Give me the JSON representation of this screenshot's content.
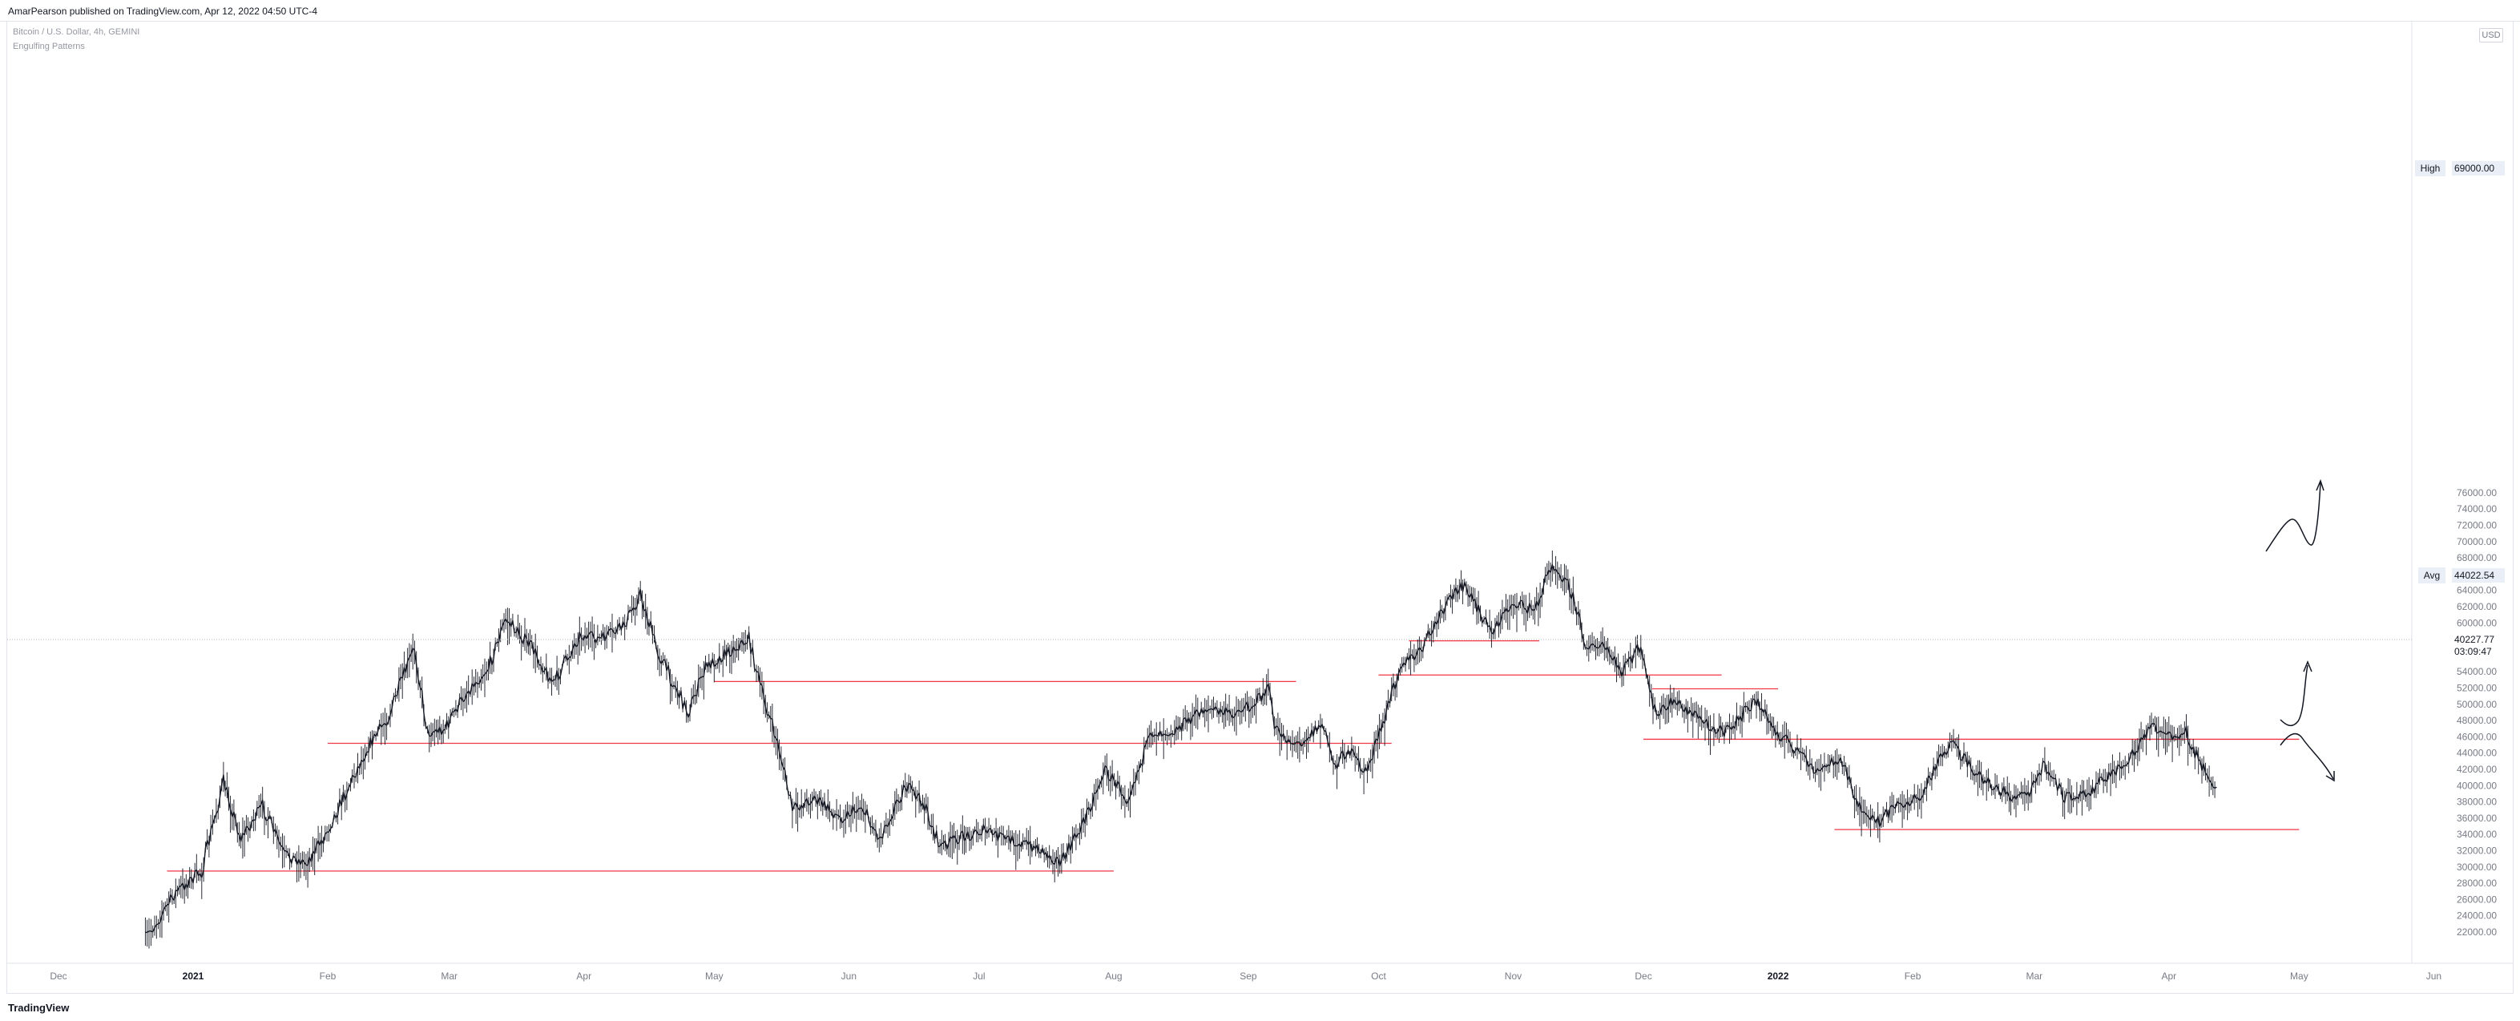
{
  "header": {
    "published_line": "AmarPearson published on TradingView.com, Apr 12, 2022 04:50 UTC-4"
  },
  "legend": {
    "symbol_line": "Bitcoin / U.S. Dollar, 4h, GEMINI",
    "indicator_line": "Engulfing Patterns"
  },
  "footer": {
    "brand": "TradingView"
  },
  "price_axis": {
    "unit": "USD",
    "high_label": "High",
    "high_value": "69000.00",
    "avg_label": "Avg",
    "avg_value": "44022.54",
    "last_value": "40227.77",
    "countdown": "03:09:47"
  },
  "colors": {
    "candles": "#131722",
    "levels": "#f23645",
    "drawings": "#131722",
    "axis_text": "#787b86",
    "grid_tag": "#e9eef7"
  },
  "chart_data": {
    "type": "line",
    "title": "",
    "xlabel": "",
    "ylabel": "",
    "ylim": [
      20000,
      77000
    ],
    "grid": false,
    "x_ticks": [
      "Dec",
      "2021",
      "Feb",
      "Mar",
      "Apr",
      "May",
      "Jun",
      "Jul",
      "Aug",
      "Sep",
      "Oct",
      "Nov",
      "Dec",
      "2022",
      "Feb",
      "Mar",
      "Apr",
      "May",
      "Jun"
    ],
    "y_ticks": [
      22000,
      24000,
      26000,
      28000,
      30000,
      32000,
      34000,
      36000,
      38000,
      40000,
      42000,
      44000,
      46000,
      48000,
      50000,
      52000,
      54000,
      56000,
      58000,
      60000,
      62000,
      64000,
      66000,
      68000,
      70000,
      72000,
      74000,
      76000
    ],
    "series": [
      {
        "x": [
          "2020-12-21",
          "2020-12-24",
          "2020-12-28",
          "2021-01-03",
          "2021-01-08",
          "2021-01-12",
          "2021-01-17",
          "2021-01-22",
          "2021-01-27",
          "2021-01-31",
          "2021-02-05",
          "2021-02-10",
          "2021-02-15",
          "2021-02-21",
          "2021-02-24",
          "2021-02-28",
          "2021-03-05",
          "2021-03-10",
          "2021-03-14",
          "2021-03-20",
          "2021-03-25",
          "2021-03-31",
          "2021-04-05",
          "2021-04-10",
          "2021-04-14",
          "2021-04-18",
          "2021-04-25",
          "2021-04-29",
          "2021-05-03",
          "2021-05-09",
          "2021-05-12",
          "2021-05-16",
          "2021-05-19",
          "2021-05-24",
          "2021-05-30",
          "2021-06-04",
          "2021-06-08",
          "2021-06-14",
          "2021-06-18",
          "2021-06-22",
          "2021-06-26",
          "2021-07-02",
          "2021-07-07",
          "2021-07-14",
          "2021-07-20",
          "2021-07-25",
          "2021-07-30",
          "2021-08-04",
          "2021-08-10",
          "2021-08-15",
          "2021-08-22",
          "2021-08-28",
          "2021-09-02",
          "2021-09-06",
          "2021-09-07",
          "2021-09-12",
          "2021-09-18",
          "2021-09-21",
          "2021-09-24",
          "2021-09-28",
          "2021-10-02",
          "2021-10-06",
          "2021-10-10",
          "2021-10-16",
          "2021-10-20",
          "2021-10-24",
          "2021-10-27",
          "2021-11-01",
          "2021-11-06",
          "2021-11-10",
          "2021-11-14",
          "2021-11-18",
          "2021-11-22",
          "2021-11-26",
          "2021-11-30",
          "2021-12-04",
          "2021-12-08",
          "2021-12-12",
          "2021-12-16",
          "2021-12-20",
          "2021-12-27",
          "2021-12-31",
          "2022-01-05",
          "2022-01-10",
          "2022-01-15",
          "2022-01-21",
          "2022-01-24",
          "2022-01-28",
          "2022-02-03",
          "2022-02-07",
          "2022-02-10",
          "2022-02-14",
          "2022-02-18",
          "2022-02-24",
          "2022-02-28",
          "2022-03-03",
          "2022-03-08",
          "2022-03-14",
          "2022-03-19",
          "2022-03-24",
          "2022-03-28",
          "2022-04-01",
          "2022-04-05",
          "2022-04-09",
          "2022-04-12"
        ],
        "y": [
          21200,
          23500,
          26900,
          29500,
          40500,
          33500,
          37500,
          31500,
          30500,
          33500,
          39000,
          44500,
          48500,
          57000,
          46500,
          47000,
          51500,
          54500,
          60500,
          57000,
          52500,
          58500,
          58000,
          59500,
          63500,
          56500,
          49000,
          54500,
          56000,
          58000,
          51500,
          44500,
          37000,
          38500,
          36000,
          37500,
          33500,
          40000,
          38000,
          32500,
          33500,
          34500,
          33500,
          32500,
          30500,
          35500,
          42000,
          38500,
          46500,
          46800,
          49500,
          48800,
          50000,
          52000,
          47000,
          45000,
          47500,
          42500,
          44500,
          41500,
          47500,
          55000,
          56000,
          61500,
          65000,
          61500,
          59000,
          62500,
          61500,
          67500,
          64500,
          57000,
          57000,
          54000,
          57000,
          48500,
          50500,
          49000,
          47500,
          46500,
          50500,
          47000,
          44500,
          41500,
          43500,
          36000,
          35500,
          37500,
          38500,
          43500,
          45000,
          42500,
          40500,
          38500,
          39000,
          42500,
          38500,
          39500,
          41500,
          44000,
          47500,
          46000,
          46500,
          42000,
          39800
        ]
      }
    ],
    "levels": [
      {
        "value": 29500,
        "from": "2020-12-26",
        "to": "2021-08-01"
      },
      {
        "value": 45200,
        "from": "2021-02-01",
        "to": "2021-10-04"
      },
      {
        "value": 52800,
        "from": "2021-05-01",
        "to": "2021-09-12"
      },
      {
        "value": 57800,
        "from": "2021-10-08",
        "to": "2021-11-07"
      },
      {
        "value": 53600,
        "from": "2021-10-01",
        "to": "2021-12-19"
      },
      {
        "value": 51900,
        "from": "2021-12-03",
        "to": "2022-01-01"
      },
      {
        "value": 45700,
        "from": "2021-12-01",
        "to": "2022-05-01"
      },
      {
        "value": 34600,
        "from": "2022-01-14",
        "to": "2022-05-01"
      }
    ]
  }
}
